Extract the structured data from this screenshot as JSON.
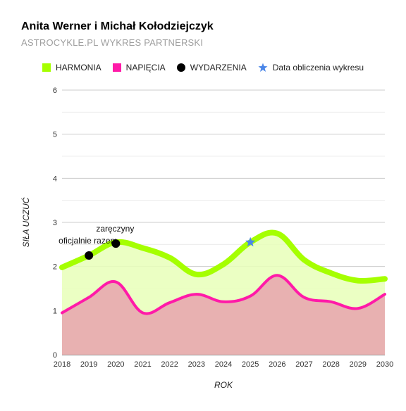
{
  "chart_data": {
    "type": "area",
    "title": "Anita Werner i Michał Kołodziejczyk",
    "subtitle": "ASTROCYKLE.PL WYKRES PARTNERSKI",
    "xlabel": "ROK",
    "ylabel": "SIŁA UCZUĆ",
    "ylim": [
      0,
      6
    ],
    "xlim": [
      2018,
      2030
    ],
    "x_ticks": [
      "2018",
      "2019",
      "2020",
      "2021",
      "2022",
      "2023",
      "2024",
      "2025",
      "2026",
      "2027",
      "2028",
      "2029",
      "2030"
    ],
    "y_ticks": [
      "0",
      "1",
      "2",
      "3",
      "4",
      "5",
      "6"
    ],
    "grid": true,
    "legend_position": "top",
    "series": [
      {
        "name": "HARMONIA",
        "color": "#a5ff00",
        "fill": "#e8ffb8",
        "x": [
          2018,
          2019,
          2020,
          2021,
          2022,
          2023,
          2024,
          2025,
          2026,
          2027,
          2028,
          2029,
          2030
        ],
        "values": [
          1.98,
          2.25,
          2.55,
          2.42,
          2.2,
          1.82,
          2.05,
          2.55,
          2.75,
          2.15,
          1.85,
          1.68,
          1.72
        ]
      },
      {
        "name": "NAPIĘCIA",
        "color": "#ff1aa8",
        "fill": "#e8b1b1",
        "x": [
          2018,
          2019,
          2020,
          2021,
          2022,
          2023,
          2024,
          2025,
          2026,
          2027,
          2028,
          2029,
          2030
        ],
        "values": [
          0.95,
          1.3,
          1.65,
          0.95,
          1.18,
          1.37,
          1.2,
          1.33,
          1.8,
          1.3,
          1.2,
          1.05,
          1.37
        ]
      }
    ],
    "events": {
      "name": "WYDARZENIA",
      "color": "#000000",
      "points": [
        {
          "x": 2019,
          "y": 2.25,
          "label": "oficjalnie razem"
        },
        {
          "x": 2020,
          "y": 2.52,
          "label": "zaręczyny"
        }
      ]
    },
    "calc_marker": {
      "name": "Data obliczenia wykresu",
      "color": "#4a86e8",
      "x": 2025,
      "y": 2.55
    }
  }
}
